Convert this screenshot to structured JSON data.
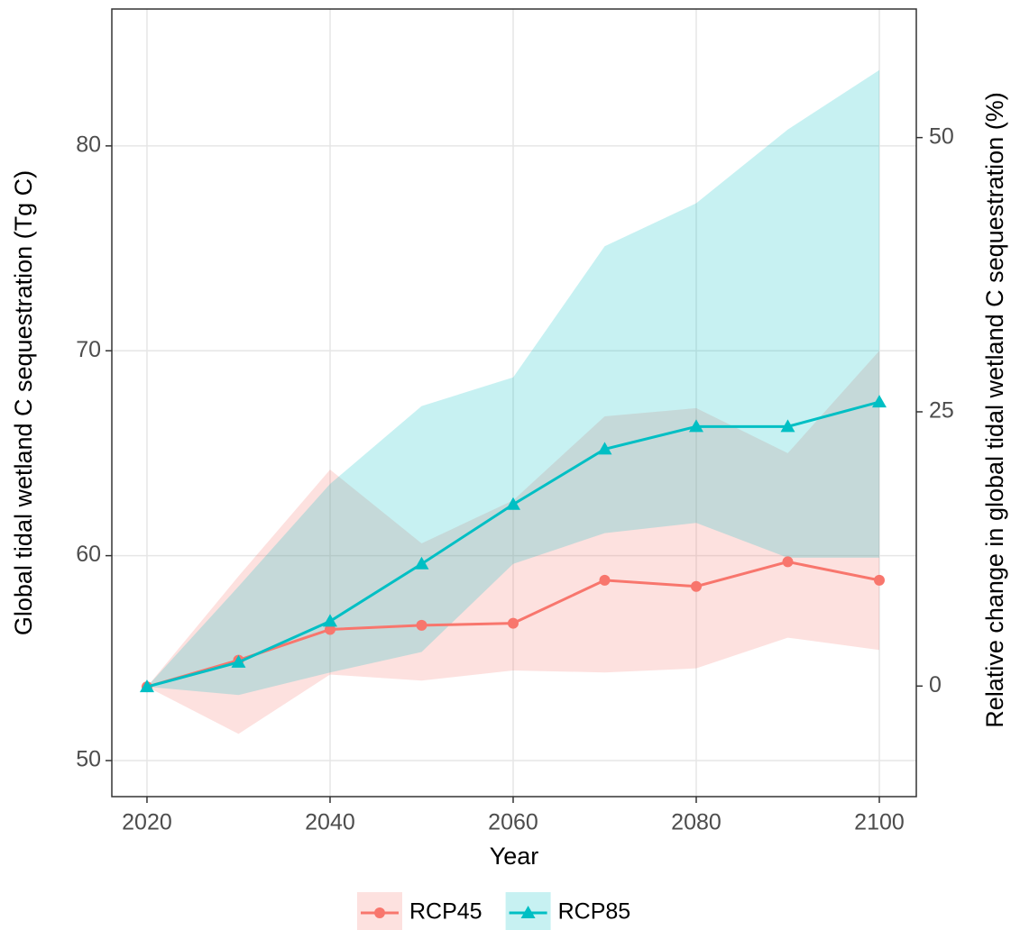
{
  "chart_data": {
    "type": "line",
    "xlabel": "Year",
    "ylabel": "Global tidal wetland C sequestration (Tg C)",
    "y2label": "Relative change in global tidal wetland C sequestration (%)",
    "x": [
      2020,
      2030,
      2040,
      2050,
      2060,
      2070,
      2080,
      2090,
      2100
    ],
    "xlim": [
      2016.16,
      2104.04
    ],
    "xticks": [
      2020,
      2040,
      2060,
      2080,
      2100
    ],
    "ylim": [
      48.24,
      86.68
    ],
    "yticks": [
      50,
      60,
      70,
      80
    ],
    "y2lim": [
      -10.08,
      61.72
    ],
    "y2ticks": [
      0,
      25,
      50
    ],
    "grid": true,
    "legend": "bottom",
    "series": [
      {
        "name": "RCP45",
        "color": "#F8766D",
        "marker": "circle",
        "values": [
          53.6,
          54.9,
          56.4,
          56.6,
          56.7,
          58.8,
          58.5,
          59.7,
          58.8
        ],
        "lower": [
          53.6,
          51.3,
          54.2,
          53.9,
          54.4,
          54.3,
          54.5,
          56.0,
          55.4
        ],
        "upper": [
          53.6,
          59.0,
          64.2,
          60.6,
          62.7,
          66.8,
          67.2,
          65.0,
          70.0
        ]
      },
      {
        "name": "RCP85",
        "color": "#00BFC4",
        "marker": "triangle",
        "values": [
          53.6,
          54.8,
          56.8,
          59.6,
          62.5,
          65.2,
          66.3,
          66.3,
          67.5
        ],
        "lower": [
          53.6,
          53.2,
          54.3,
          55.3,
          59.6,
          61.1,
          61.6,
          59.9,
          59.9
        ],
        "upper": [
          53.6,
          58.5,
          63.5,
          67.3,
          68.7,
          75.1,
          77.2,
          80.8,
          83.7
        ]
      }
    ]
  }
}
